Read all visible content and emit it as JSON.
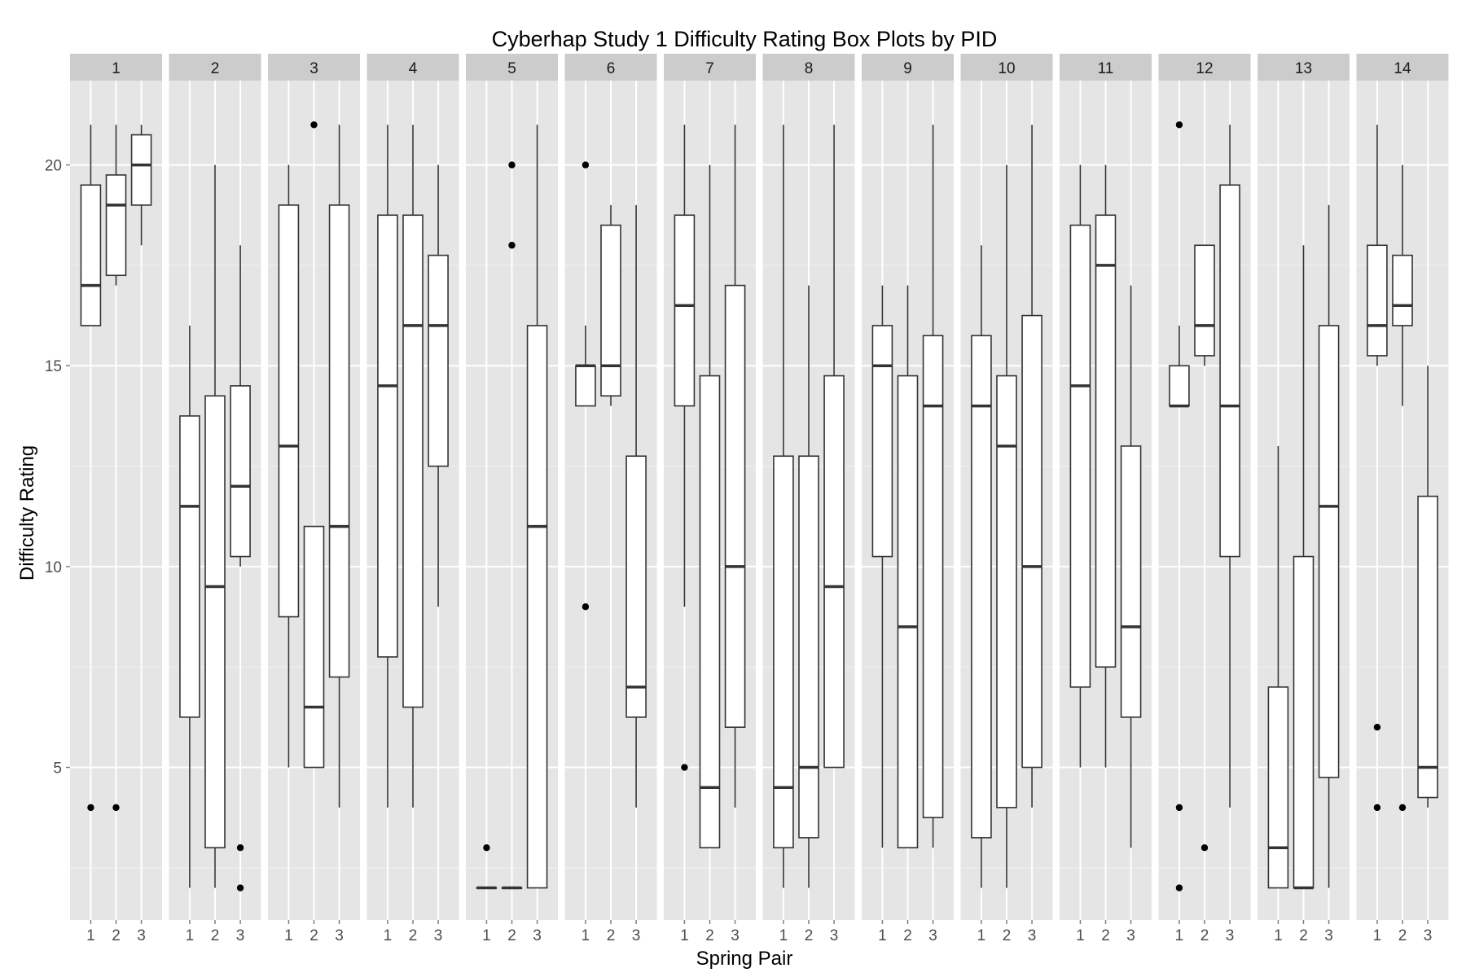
{
  "chart_data": {
    "type": "boxplot",
    "title": "Cyberhap Study 1 Difficulty Rating Box Plots by PID",
    "xlabel": "Spring Pair",
    "ylabel": "Difficulty Rating",
    "facet_labels": [
      "1",
      "2",
      "3",
      "4",
      "5",
      "6",
      "7",
      "8",
      "9",
      "10",
      "11",
      "12",
      "13",
      "14"
    ],
    "categories": [
      "1",
      "2",
      "3"
    ],
    "y_ticks": [
      5,
      10,
      15,
      20
    ],
    "ylim": [
      1.2,
      22.1
    ],
    "grid": true,
    "facets": [
      {
        "pid": "1",
        "boxes": [
          {
            "x": "1",
            "lower_whisker": 16,
            "q1": 16,
            "median": 17,
            "q3": 19.5,
            "upper_whisker": 21,
            "outliers": [
              4
            ]
          },
          {
            "x": "2",
            "lower_whisker": 17,
            "q1": 17.25,
            "median": 19,
            "q3": 19.75,
            "upper_whisker": 21,
            "outliers": [
              4
            ]
          },
          {
            "x": "3",
            "lower_whisker": 18,
            "q1": 19,
            "median": 20,
            "q3": 20.75,
            "upper_whisker": 21,
            "outliers": []
          }
        ]
      },
      {
        "pid": "2",
        "boxes": [
          {
            "x": "1",
            "lower_whisker": 2,
            "q1": 6.25,
            "median": 11.5,
            "q3": 13.75,
            "upper_whisker": 16,
            "outliers": []
          },
          {
            "x": "2",
            "lower_whisker": 2,
            "q1": 3,
            "median": 9.5,
            "q3": 14.25,
            "upper_whisker": 20,
            "outliers": []
          },
          {
            "x": "3",
            "lower_whisker": 10,
            "q1": 10.25,
            "median": 12,
            "q3": 14.5,
            "upper_whisker": 18,
            "outliers": [
              3,
              2
            ]
          }
        ]
      },
      {
        "pid": "3",
        "boxes": [
          {
            "x": "1",
            "lower_whisker": 5,
            "q1": 8.75,
            "median": 13,
            "q3": 19,
            "upper_whisker": 20,
            "outliers": []
          },
          {
            "x": "2",
            "lower_whisker": 5,
            "q1": 5,
            "median": 6.5,
            "q3": 11,
            "upper_whisker": 11,
            "outliers": [
              21
            ]
          },
          {
            "x": "3",
            "lower_whisker": 4,
            "q1": 7.25,
            "median": 11,
            "q3": 19,
            "upper_whisker": 21,
            "outliers": []
          }
        ]
      },
      {
        "pid": "4",
        "boxes": [
          {
            "x": "1",
            "lower_whisker": 4,
            "q1": 7.75,
            "median": 14.5,
            "q3": 18.75,
            "upper_whisker": 21,
            "outliers": []
          },
          {
            "x": "2",
            "lower_whisker": 4,
            "q1": 6.5,
            "median": 16,
            "q3": 18.75,
            "upper_whisker": 21,
            "outliers": []
          },
          {
            "x": "3",
            "lower_whisker": 9,
            "q1": 12.5,
            "median": 16,
            "q3": 17.75,
            "upper_whisker": 20,
            "outliers": []
          }
        ]
      },
      {
        "pid": "5",
        "boxes": [
          {
            "x": "1",
            "lower_whisker": 2,
            "q1": 2,
            "median": 2,
            "q3": 2,
            "upper_whisker": 2,
            "outliers": [
              3
            ]
          },
          {
            "x": "2",
            "lower_whisker": 2,
            "q1": 2,
            "median": 2,
            "q3": 2,
            "upper_whisker": 2,
            "outliers": [
              20,
              18
            ]
          },
          {
            "x": "3",
            "lower_whisker": 2,
            "q1": 2,
            "median": 11,
            "q3": 16,
            "upper_whisker": 21,
            "outliers": []
          }
        ]
      },
      {
        "pid": "6",
        "boxes": [
          {
            "x": "1",
            "lower_whisker": 14,
            "q1": 14,
            "median": 15,
            "q3": 15,
            "upper_whisker": 16,
            "outliers": [
              20,
              9
            ]
          },
          {
            "x": "2",
            "lower_whisker": 14,
            "q1": 14.25,
            "median": 15,
            "q3": 18.5,
            "upper_whisker": 19,
            "outliers": []
          },
          {
            "x": "3",
            "lower_whisker": 4,
            "q1": 6.25,
            "median": 7,
            "q3": 12.75,
            "upper_whisker": 19,
            "outliers": []
          }
        ]
      },
      {
        "pid": "7",
        "boxes": [
          {
            "x": "1",
            "lower_whisker": 9,
            "q1": 14,
            "median": 16.5,
            "q3": 18.75,
            "upper_whisker": 21,
            "outliers": [
              5
            ]
          },
          {
            "x": "2",
            "lower_whisker": 3,
            "q1": 3,
            "median": 4.5,
            "q3": 14.75,
            "upper_whisker": 20,
            "outliers": []
          },
          {
            "x": "3",
            "lower_whisker": 4,
            "q1": 6,
            "median": 10,
            "q3": 17,
            "upper_whisker": 21,
            "outliers": []
          }
        ]
      },
      {
        "pid": "8",
        "boxes": [
          {
            "x": "1",
            "lower_whisker": 2,
            "q1": 3,
            "median": 4.5,
            "q3": 12.75,
            "upper_whisker": 21,
            "outliers": []
          },
          {
            "x": "2",
            "lower_whisker": 2,
            "q1": 3.25,
            "median": 5,
            "q3": 12.75,
            "upper_whisker": 17,
            "outliers": []
          },
          {
            "x": "3",
            "lower_whisker": 5,
            "q1": 5,
            "median": 9.5,
            "q3": 14.75,
            "upper_whisker": 21,
            "outliers": []
          }
        ]
      },
      {
        "pid": "9",
        "boxes": [
          {
            "x": "1",
            "lower_whisker": 3,
            "q1": 10.25,
            "median": 15,
            "q3": 16,
            "upper_whisker": 17,
            "outliers": []
          },
          {
            "x": "2",
            "lower_whisker": 3,
            "q1": 3,
            "median": 8.5,
            "q3": 14.75,
            "upper_whisker": 17,
            "outliers": []
          },
          {
            "x": "3",
            "lower_whisker": 3,
            "q1": 3.75,
            "median": 14,
            "q3": 15.75,
            "upper_whisker": 21,
            "outliers": []
          }
        ]
      },
      {
        "pid": "10",
        "boxes": [
          {
            "x": "1",
            "lower_whisker": 2,
            "q1": 3.25,
            "median": 14,
            "q3": 15.75,
            "upper_whisker": 18,
            "outliers": []
          },
          {
            "x": "2",
            "lower_whisker": 2,
            "q1": 4,
            "median": 13,
            "q3": 14.75,
            "upper_whisker": 20,
            "outliers": []
          },
          {
            "x": "3",
            "lower_whisker": 4,
            "q1": 5,
            "median": 10,
            "q3": 16.25,
            "upper_whisker": 21,
            "outliers": []
          }
        ]
      },
      {
        "pid": "11",
        "boxes": [
          {
            "x": "1",
            "lower_whisker": 5,
            "q1": 7,
            "median": 14.5,
            "q3": 18.5,
            "upper_whisker": 20,
            "outliers": []
          },
          {
            "x": "2",
            "lower_whisker": 5,
            "q1": 7.5,
            "median": 17.5,
            "q3": 18.75,
            "upper_whisker": 20,
            "outliers": []
          },
          {
            "x": "3",
            "lower_whisker": 3,
            "q1": 6.25,
            "median": 8.5,
            "q3": 13,
            "upper_whisker": 17,
            "outliers": []
          }
        ]
      },
      {
        "pid": "12",
        "boxes": [
          {
            "x": "1",
            "lower_whisker": 14,
            "q1": 14,
            "median": 14,
            "q3": 15,
            "upper_whisker": 16,
            "outliers": [
              21,
              4,
              2
            ]
          },
          {
            "x": "2",
            "lower_whisker": 15,
            "q1": 15.25,
            "median": 16,
            "q3": 18,
            "upper_whisker": 18,
            "outliers": [
              3
            ]
          },
          {
            "x": "3",
            "lower_whisker": 4,
            "q1": 10.25,
            "median": 14,
            "q3": 19.5,
            "upper_whisker": 21,
            "outliers": []
          }
        ]
      },
      {
        "pid": "13",
        "boxes": [
          {
            "x": "1",
            "lower_whisker": 2,
            "q1": 2,
            "median": 3,
            "q3": 7,
            "upper_whisker": 13,
            "outliers": []
          },
          {
            "x": "2",
            "lower_whisker": 2,
            "q1": 2,
            "median": 2,
            "q3": 10.25,
            "upper_whisker": 18,
            "outliers": []
          },
          {
            "x": "3",
            "lower_whisker": 2,
            "q1": 4.75,
            "median": 11.5,
            "q3": 16,
            "upper_whisker": 19,
            "outliers": []
          }
        ]
      },
      {
        "pid": "14",
        "boxes": [
          {
            "x": "1",
            "lower_whisker": 15,
            "q1": 15.25,
            "median": 16,
            "q3": 18,
            "upper_whisker": 21,
            "outliers": [
              6,
              4
            ]
          },
          {
            "x": "2",
            "lower_whisker": 14,
            "q1": 16,
            "median": 16.5,
            "q3": 17.75,
            "upper_whisker": 20,
            "outliers": [
              4
            ]
          },
          {
            "x": "3",
            "lower_whisker": 4,
            "q1": 4.25,
            "median": 5,
            "q3": 11.75,
            "upper_whisker": 15,
            "outliers": []
          }
        ]
      }
    ]
  }
}
